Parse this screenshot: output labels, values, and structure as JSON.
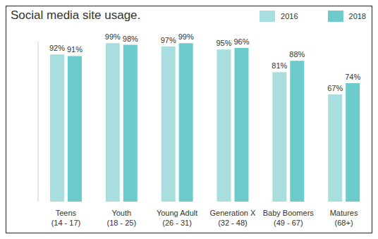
{
  "chart_data": {
    "type": "bar",
    "title": "Social media site usage.",
    "categories": [
      "Teens (14 - 17)",
      "Youth (18 - 25)",
      "Young Adult (26 - 31)",
      "Generation X (32 - 48)",
      "Baby Boomers (49 - 67)",
      "Matures (68+)"
    ],
    "series": [
      {
        "name": "2016",
        "color": "#a8dede",
        "values": [
          92,
          99,
          97,
          95,
          81,
          67
        ],
        "value_labels": [
          "92%",
          "99%",
          "97%",
          "95%",
          "81%",
          "67%"
        ]
      },
      {
        "name": "2018",
        "color": "#6ecbcb",
        "values": [
          91,
          98,
          99,
          96,
          88,
          74
        ],
        "value_labels": [
          "91%",
          "98%",
          "99%",
          "96%",
          "88%",
          "74%"
        ]
      }
    ],
    "ylim": [
      0,
      100
    ],
    "data_labels": true,
    "tick_labels": "x",
    "grid": false,
    "legend": "top-right"
  }
}
